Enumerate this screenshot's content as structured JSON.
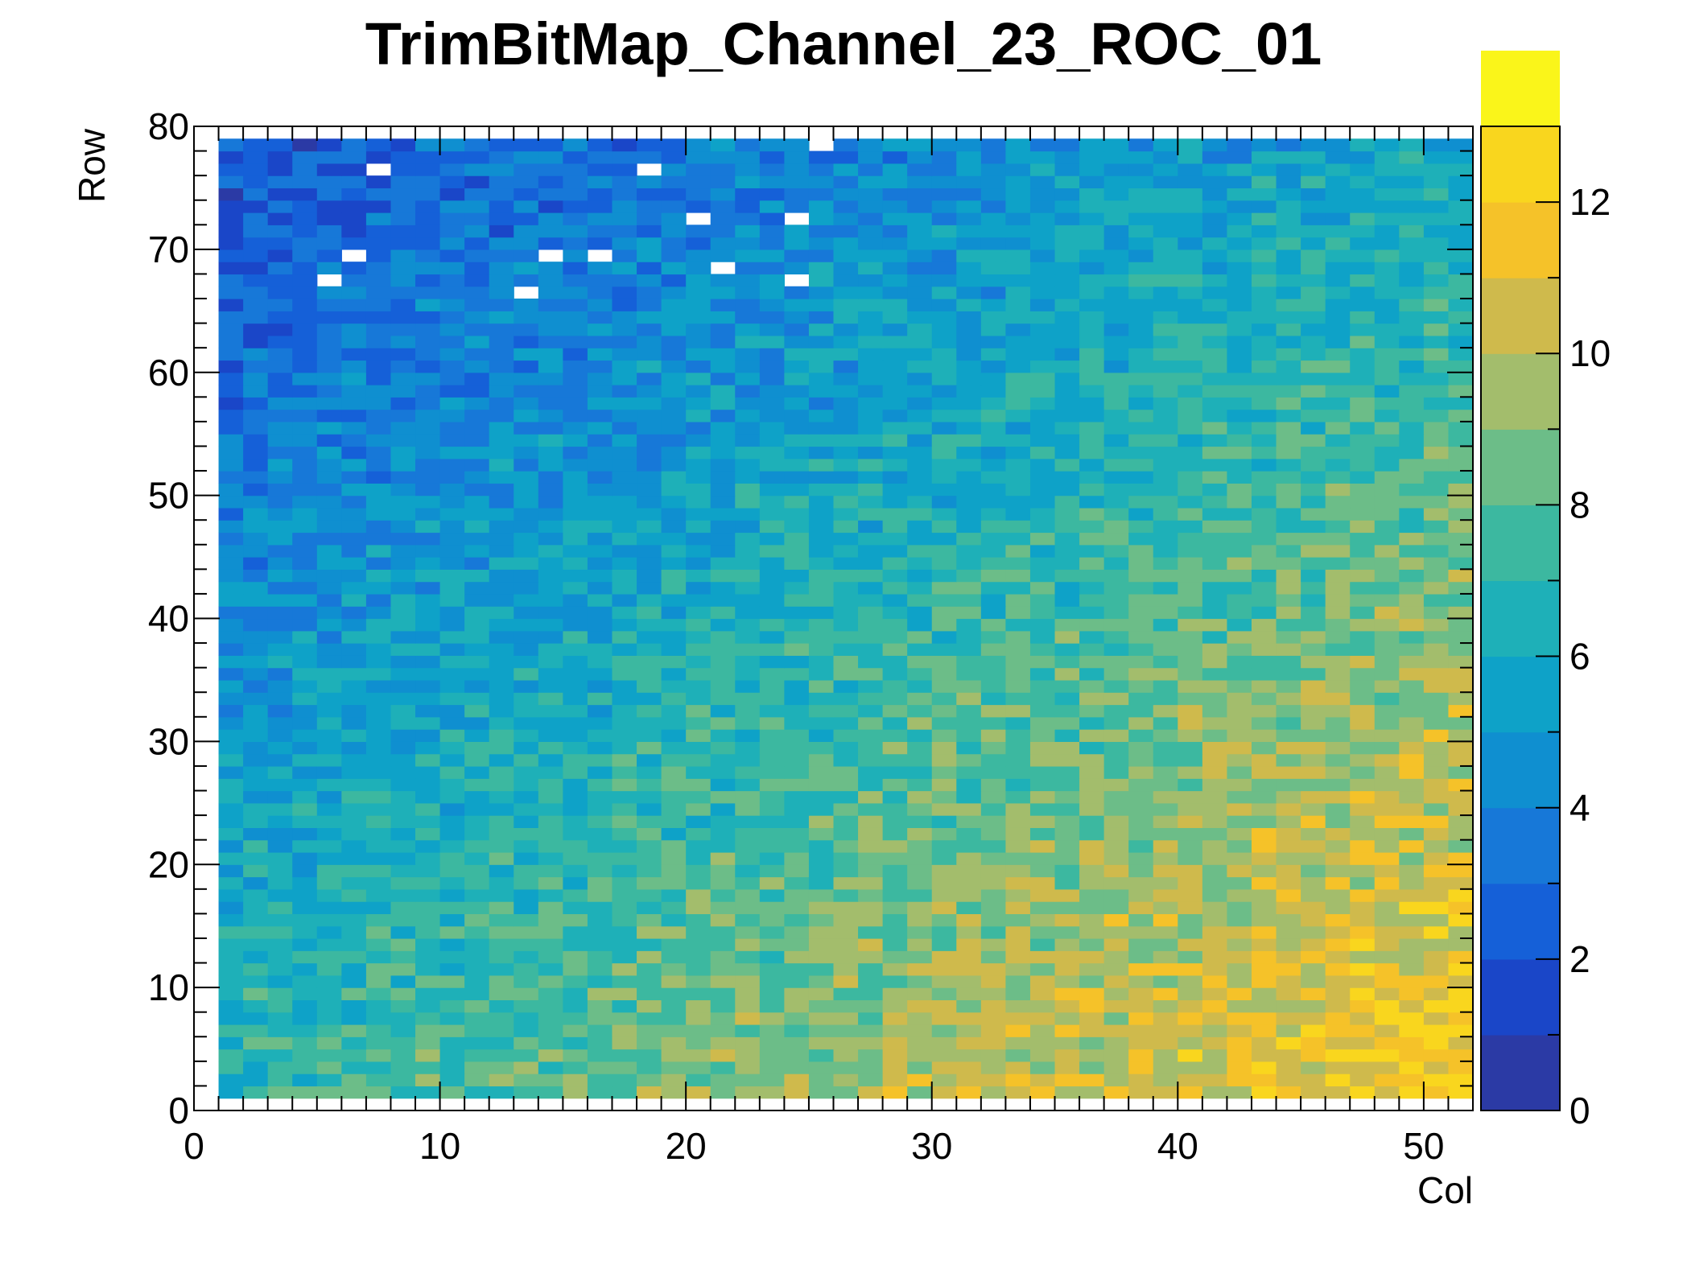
{
  "chart_data": {
    "type": "heatmap",
    "title": "TrimBitMap_Channel_23_ROC_01",
    "xlabel": "Col",
    "ylabel": "Row",
    "xlim": [
      0,
      52
    ],
    "ylim": [
      0,
      80
    ],
    "zlim": [
      0,
      13
    ],
    "x_ticks": [
      0,
      10,
      20,
      30,
      40,
      50
    ],
    "y_ticks": [
      0,
      10,
      20,
      30,
      40,
      50,
      60,
      70,
      80
    ],
    "z_ticks": [
      0,
      2,
      4,
      6,
      8,
      10,
      12
    ],
    "x_bins": {
      "first": 1,
      "last": 51,
      "width": 1
    },
    "y_bins": {
      "first": 1,
      "last": 78,
      "width": 1
    },
    "trend_description_values": {
      "value_at_col1_row1": 7,
      "value_at_col51_row1": 12,
      "value_at_col1_row78": 2,
      "value_at_col51_row78": 6
    },
    "colormap": [
      "#2b3aa5",
      "#1a46c8",
      "#1560d8",
      "#1778d8",
      "#0f8fd0",
      "#0ea2c8",
      "#1eb0b8",
      "#3cb8a0",
      "#6cbd88",
      "#a3bd6c",
      "#cfba4c",
      "#f5c229",
      "#f9d61e",
      "#faf51a"
    ]
  }
}
